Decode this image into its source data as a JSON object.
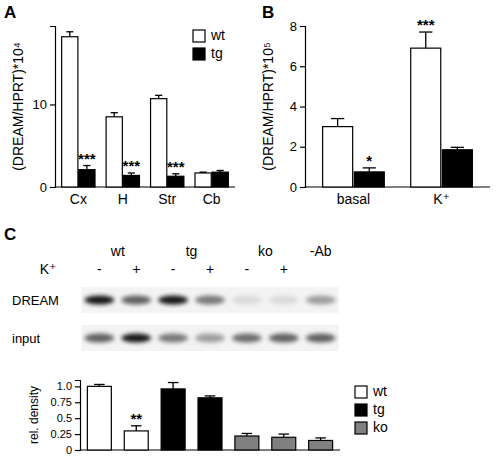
{
  "chart_data": [
    {
      "type": "bar",
      "title": "A",
      "y_label": "(DREAM/HPRT)*10⁴",
      "categories": [
        "Cx",
        "H",
        "Str",
        "Cb"
      ],
      "series": [
        {
          "name": "wt",
          "color": "#ffffff",
          "values": [
            18.2,
            8.5,
            10.7,
            1.7
          ],
          "errors": [
            0.6,
            0.5,
            0.4,
            0.1
          ]
        },
        {
          "name": "tg",
          "color": "#000000",
          "values": [
            2.1,
            1.4,
            1.3,
            1.8
          ],
          "errors": [
            0.5,
            0.3,
            0.3,
            0.2
          ],
          "annotations": [
            "***",
            "***",
            "***",
            null
          ]
        }
      ],
      "ylim": [
        0,
        19.5
      ],
      "yticks": [
        0,
        10
      ],
      "legend": "top-right"
    },
    {
      "type": "bar",
      "title": "B",
      "y_label": "(DREAM/HPRT)*10⁵",
      "categories": [
        "basal",
        "K⁺"
      ],
      "series": [
        {
          "name": "wt",
          "color": "#ffffff",
          "values": [
            3.0,
            6.9
          ],
          "errors": [
            0.4,
            0.8
          ],
          "annotations": [
            null,
            "***"
          ]
        },
        {
          "name": "tg",
          "color": "#000000",
          "values": [
            0.75,
            1.85
          ],
          "errors": [
            0.2,
            0.12
          ],
          "annotations": [
            "*",
            null
          ]
        }
      ],
      "ylim": [
        0,
        8
      ],
      "yticks": [
        0,
        2,
        4,
        6,
        8
      ]
    },
    {
      "type": "bar",
      "title": "C",
      "y_label": "rel. density",
      "categories": [
        null,
        null,
        null,
        null,
        null,
        null,
        null
      ],
      "series": [
        {
          "name": "wt",
          "color": "#ffffff",
          "values": [
            1.0,
            0.3,
            null,
            null,
            null,
            null,
            null
          ],
          "errors": [
            0.03,
            0.08,
            null,
            null,
            null,
            null,
            null
          ],
          "annotations": [
            null,
            "**",
            null,
            null,
            null,
            null,
            null
          ]
        },
        {
          "name": "tg",
          "color": "#000000",
          "values": [
            null,
            null,
            0.96,
            0.82,
            null,
            null,
            null
          ],
          "errors": [
            null,
            null,
            0.1,
            0.03,
            null,
            null,
            null
          ]
        },
        {
          "name": "ko",
          "color": "#808080",
          "values": [
            null,
            null,
            null,
            null,
            0.22,
            0.2,
            0.15
          ],
          "errors": [
            null,
            null,
            null,
            null,
            0.04,
            0.05,
            0.04
          ]
        }
      ],
      "ylim": [
        0,
        1.1
      ],
      "yticks": [
        0,
        0.25,
        0.5,
        0.75,
        {
          "value": 1,
          "label": "1.0"
        }
      ],
      "legend": "right",
      "tick_labels": "y"
    }
  ],
  "blot": {
    "treatment": "K⁺",
    "groups": [
      {
        "label": "wt",
        "lanes": [
          "-",
          "+"
        ]
      },
      {
        "label": "tg",
        "lanes": [
          "-",
          "+"
        ]
      },
      {
        "label": "ko",
        "lanes": [
          "-",
          "+"
        ]
      },
      {
        "label": "-Ab",
        "lanes": [
          null
        ]
      }
    ],
    "rows": [
      {
        "label": "DREAM",
        "intensity": [
          0.9,
          0.6,
          0.9,
          0.5,
          0.1,
          0.1,
          0.35
        ]
      },
      {
        "label": "input",
        "intensity": [
          0.6,
          0.9,
          0.5,
          0.35,
          0.55,
          0.6,
          0.6
        ]
      }
    ]
  }
}
